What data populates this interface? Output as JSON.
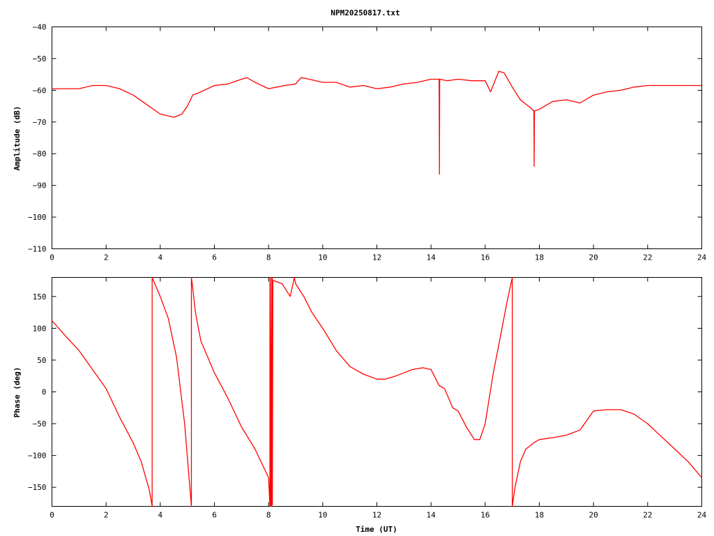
{
  "title": "NPM20250817.txt",
  "colors": {
    "series": "#ff0000",
    "frame": "#000000",
    "background": "#ffffff"
  },
  "chart_data": [
    {
      "type": "line",
      "title": "NPM20250817.txt",
      "xlabel": "",
      "ylabel": "Amplitude (dB)",
      "xlim": [
        0,
        24
      ],
      "ylim": [
        -110,
        -40
      ],
      "xticks": [
        0,
        2,
        4,
        6,
        8,
        10,
        12,
        14,
        16,
        18,
        20,
        22,
        24
      ],
      "yticks": [
        -110,
        -100,
        -90,
        -80,
        -70,
        -60,
        -50,
        -40
      ],
      "xtick_labels": [
        "0",
        "2",
        "4",
        "6",
        "8",
        "10",
        "12",
        "14",
        "16",
        "18",
        "20",
        "22",
        "24"
      ],
      "ytick_labels": [
        "−110",
        "−100",
        "−90",
        "−80",
        "−70",
        "−60",
        "−50",
        "−40"
      ],
      "grid": false,
      "series": [
        {
          "x": [
            0,
            0.5,
            1,
            1.5,
            2,
            2.5,
            3,
            3.5,
            4,
            4.5,
            4.8,
            5,
            5.2,
            5.5,
            6,
            6.5,
            7,
            7.2,
            7.5,
            8,
            8.3,
            8.6,
            9,
            9.2,
            9.5,
            10,
            10.5,
            11,
            11.5,
            12,
            12.5,
            13,
            13.5,
            14,
            14.3,
            14.31,
            14.32,
            14.6,
            15,
            15.5,
            16,
            16.2,
            16.5,
            16.7,
            17,
            17.3,
            17.6,
            17.8,
            17.81,
            17.82,
            18,
            18.5,
            19,
            19.5,
            20,
            20.5,
            21,
            21.5,
            22,
            22.5,
            23,
            23.5,
            24
          ],
          "y": [
            -59.5,
            -59.5,
            -59.5,
            -58.5,
            -58.5,
            -59.5,
            -61.5,
            -64.5,
            -67.5,
            -68.5,
            -67.5,
            -65,
            -61.5,
            -60.5,
            -58.5,
            -58,
            -56.5,
            -56,
            -57.5,
            -59.5,
            -59,
            -58.5,
            -58,
            -56,
            -56.5,
            -57.5,
            -57.5,
            -59,
            -58.5,
            -59.5,
            -59,
            -58,
            -57.5,
            -56.5,
            -56.5,
            -86.5,
            -56.5,
            -57,
            -56.5,
            -57,
            -57,
            -60.5,
            -54,
            -54.5,
            -59,
            -63,
            -65,
            -66.5,
            -84,
            -66.5,
            -66,
            -63.5,
            -63,
            -64,
            -61.5,
            -60.5,
            -60,
            -59,
            -58.5,
            -58.5,
            -58.5,
            -58.5,
            -58.5
          ]
        }
      ]
    },
    {
      "type": "line",
      "title": "",
      "xlabel": "Time (UT)",
      "ylabel": "Phase (deg)",
      "xlim": [
        0,
        24
      ],
      "ylim": [
        -180,
        180
      ],
      "xticks": [
        0,
        2,
        4,
        6,
        8,
        10,
        12,
        14,
        16,
        18,
        20,
        22,
        24
      ],
      "yticks": [
        -150,
        -100,
        -50,
        0,
        50,
        100,
        150
      ],
      "xtick_labels": [
        "0",
        "2",
        "4",
        "6",
        "8",
        "10",
        "12",
        "14",
        "16",
        "18",
        "20",
        "22",
        "24"
      ],
      "ytick_labels": [
        "−150",
        "−100",
        "−50",
        "0",
        "50",
        "100",
        "150"
      ],
      "grid": false,
      "series": [
        {
          "x": [
            0,
            0.5,
            1,
            1.5,
            2,
            2.5,
            3,
            3.3,
            3.6,
            3.7,
            3.7,
            3.75,
            4,
            4.3,
            4.6,
            4.9,
            5.15,
            5.15,
            5.18,
            5.3,
            5.5,
            6,
            6.5,
            7,
            7.5,
            8,
            8.05,
            8.05,
            8.07,
            8.1,
            8.1,
            8.12,
            8.14,
            8.14,
            8.16,
            8.2,
            8.5,
            8.8,
            8.95,
            8.95,
            9,
            9.3,
            9.6,
            10,
            10.5,
            11,
            11.5,
            12,
            12.3,
            12.7,
            13,
            13.3,
            13.7,
            14,
            14.3,
            14.5,
            14.8,
            15,
            15.3,
            15.6,
            15.8,
            16,
            16.3,
            16.6,
            16.8,
            17,
            17.0,
            17.1,
            17.3,
            17.5,
            17.8,
            18,
            18.5,
            19,
            19.5,
            20,
            20.5,
            21,
            21.5,
            22,
            22.5,
            23,
            23.5,
            24
          ],
          "y": [
            112,
            88,
            65,
            35,
            5,
            -40,
            -80,
            -110,
            -155,
            -180,
            180,
            175,
            150,
            115,
            55,
            -50,
            -180,
            180,
            170,
            125,
            80,
            30,
            -10,
            -55,
            -90,
            -135,
            -180,
            180,
            -178,
            180,
            -180,
            -175,
            180,
            -178,
            175,
            175,
            170,
            150,
            180,
            180,
            170,
            150,
            125,
            100,
            65,
            40,
            28,
            20,
            20,
            25,
            30,
            35,
            38,
            35,
            10,
            5,
            -25,
            -30,
            -55,
            -75,
            -75,
            -50,
            30,
            95,
            140,
            180,
            -180,
            -150,
            -110,
            -90,
            -80,
            -75,
            -72,
            -68,
            -60,
            -30,
            -28,
            -28,
            -35,
            -50,
            -70,
            -90,
            -110,
            -135
          ]
        }
      ]
    }
  ]
}
